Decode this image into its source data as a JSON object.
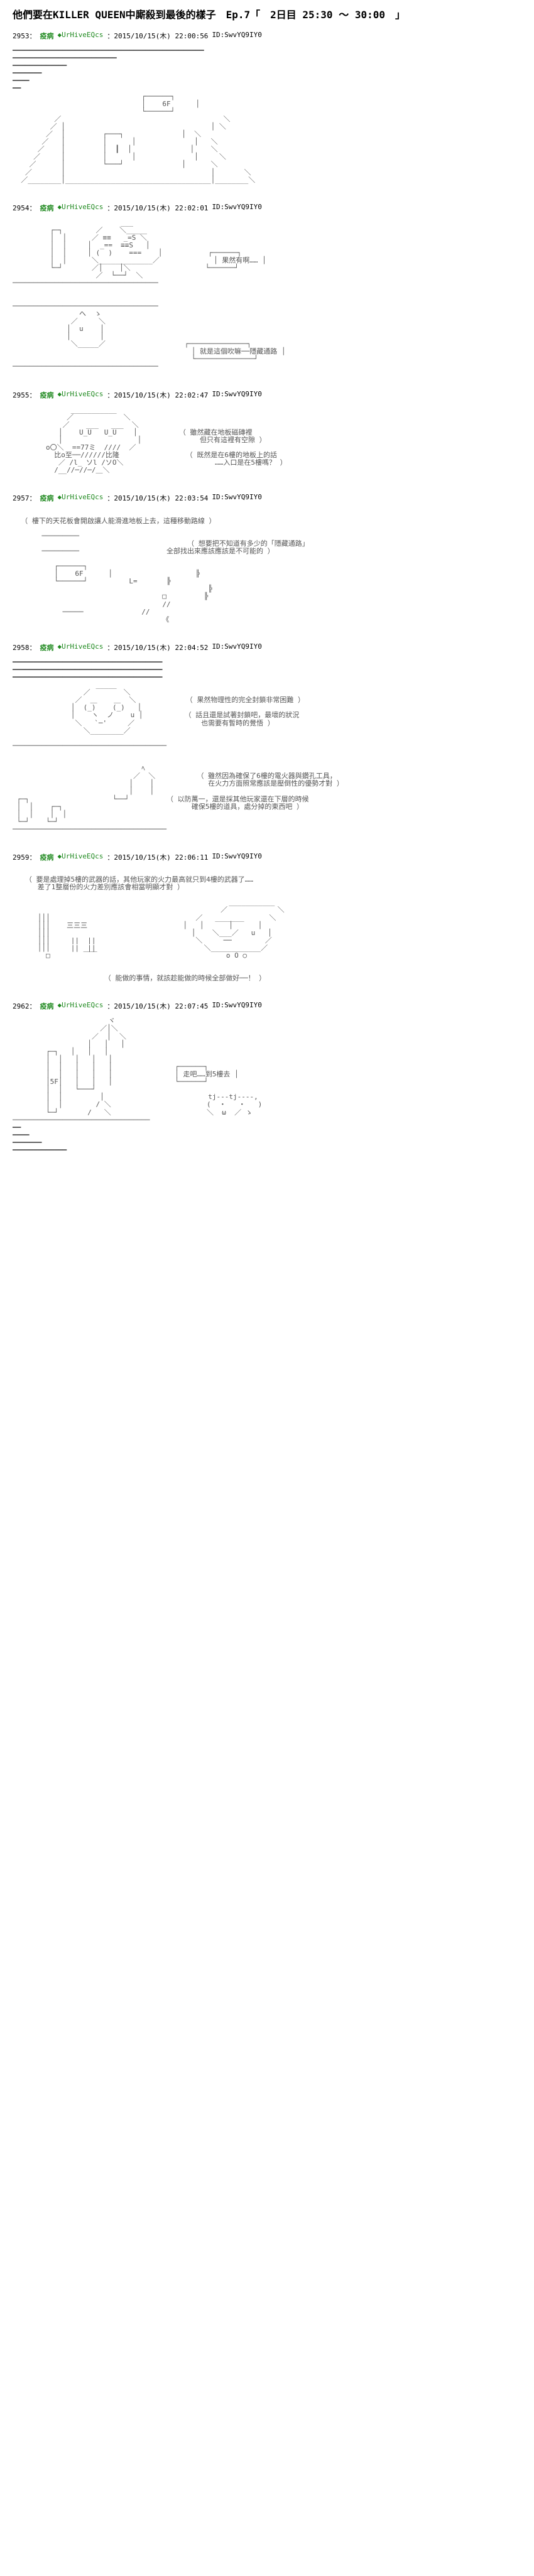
{
  "title": "他們要在KILLER QUEEN中廝殺到最後的樣子　Ep.7「　2日目 25:30 ～ 30:00　」",
  "name_label": "疫病",
  "tripcode": "◆UrHiveEQcs",
  "posts": [
    {
      "num": "2953",
      "date": "2015/10/15(木) 22:00:56",
      "id": "ID:SwvYQ9IY0",
      "aa": "━━━━━━━━━━━━━━━━━━━━━━━━━━━━━━━━━━━━━━━━━━━━━━\n━━━━━━━━━━━━━━━━━━━━━━━━━\n━━━━━━━━━━━━━\n━━━━━━━\n━━━━\n━━\n                               ┌──────┐\n                               │    6F      │\n                               └──────┘\n          ／                                       ＼\n         ／ │                                   │ ＼\n        ／  │         ┌───┐              │  ＼\n       ／   │         │      │              │   ＼\n      ／    │         │  ┃  │              │    ＼\n     ／     │         │      │              │     ＼\n    ／      │         └───┘              │      ＼\n   ／       │                                   │       ＼\n  ／________│___________________________________│________＼"
    },
    {
      "num": "2954",
      "date": "2015/10/15(木) 22:02:01",
      "id": "ID:SwvYQ9IY0",
      "aa": "                          ___\n         ┌─┐        ／    ＼_____\n         │  │      ／ ≡≡   _=S ＼\n         │  │     │  _==  ≡≡S   │\n         │  │     │ (  )    ===    │           ┌──────┐\n         │  │      ＼_____________／             │ 果然有啊…… │\n         └─┘       ／│    │＼                  └──────┘\n                    ／  └──┘  ＼\n───────────────────────────────────\n\n\n───────────────────────────────────\n                へ  ゝ\n              ／     ＼\n             │  u    │\n             │       │\n              ＼_____／                   ┌──────────────┐\n                                           │ 就是這個吹嘛──隱藏通路 │\n                                           └──────────────┘\n───────────────────────────────────"
    },
    {
      "num": "2955",
      "date": "2015/10/15(木) 22:02:47",
      "id": "ID:SwvYQ9IY0",
      "aa": "              ___________\n             ／            ＼\n            ／    ___   ___  ＼\n           │    U_U   U_U    │          （ 雖然藏在地板磁磚裡\n           │                  │              但只有這裡有空隙 ）\n        o〇＼  ==77ミ  ////  ／\n          比o至──//////比隆                （ 既然是在6樓的地板上的話\n           ／ /l_ ソl /ソO＼                      ……入口是在5樓嗎？ ）\n          /__//─//─/＿＼"
    },
    {
      "num": "2957",
      "date": "2015/10/15(木) 22:03:54",
      "id": "ID:SwvYQ9IY0",
      "aa": "\n  （ 樓下的天花板會開啟讓人能滑進地板上去，這種移動路線 ）\n\n       ─────────\n                                          （ 想要把不知道有多少的「隱藏通路」\n       ─────────                     全部找出來應該應該是不可能的 ）\n\n          ┌──────┐\n          │    6F      │                    ╠\n          └──────┘          L=       ╠\n                                               ╠\n                                    □         ╠\n                                    //\n            ─────              //\n                                    《"
    },
    {
      "num": "2958",
      "date": "2015/10/15(木) 22:04:52",
      "id": "ID:SwvYQ9IY0",
      "aa": "━━━━━━━━━━━━━━━━━━━━━━━━━━━━━━━━━━━━\n━━━━━━━━━━━━━━━━━━━━━━━━━━━━━━━━━━━━\n━━━━━━━━━━━━━━━━━━━━━━━━━━━━━━━━━━━━\n                    _____\n                 ／        ＼\n               ／  ＿    ＿  ＼            （ 果然物理性的完全封鎖非常困難 ）\n              │  (_)    (_)   │\n              │    ヽ  ノ    u │          （ 話且還是試著封鎖吧，最壞的狀況\n               ＼   `─'     ／                也需要有暫時的覺悟 ）\n                 ＼________／\n\n─────────────────────────────────────\n\n\n                               ﾍ\n                             ／  ＼          （ 雖然因為確保了6樓的電火器與鑽孔工具，\n                            │    │             在火力方面照常應該是壓倒性的優勢才對 ）\n                            │    │\n ┌─┐                    └──┘         （ 以防萬一，還是採其他玩家還在下層的時候\n │  │    ┌─┐                               確保5樓的道具，處分掉的東西吧 ）\n │  │    │  │\n └─┘    └─┘\n─────────────────────────────────────"
    },
    {
      "num": "2959",
      "date": "2015/10/15(木) 22:06:11",
      "id": "ID:SwvYQ9IY0",
      "aa": "\n   （ 要是處理掉5樓的武器的話，其他玩家的火力最高就只到4樓的武器了……\n      差了1整層份的火力差別應該會相當明顯才對 ）\n\n                                                    ___________\n                                                  ／            ＼\n      │││                                   ／   _______      ＼\n      │││    三三三                       │   │      │      │\n      │││                                  │    ＼___／   u   │\n      │││     ||  ||                        ＼     ──        ／\n      │││     ||  ||                          ＼____________／\n        □        ￣￣                               o O ○\n\n\n                      （ 能做的事情，就該趁能做的時候全部做好──！ ）"
    },
    {
      "num": "2962",
      "date": "2015/10/15(木) 22:07:45",
      "id": "ID:SwvYQ9IY0",
      "aa": "                       ヾ\n                     ／│＼\n                   ／  │  ＼\n                  │   │   │\n        ┌─┐   │   │   │\n        │  │   │   │   │\n        │  │   │   │   │               ┌──────┐\n        │  │   │   │   │               │ 走吧……到5樓去 │\n        │5F│   │   │   │               └──────┘\n        │  │   └───┘\n        │  │         │                         tj---tj----,\n        │  │        / ＼                       (  ・   ・   )\n        └─┘       /   ＼                       ＼  ω  ／ ゝ\n─────────────────────────────────\n━━\n━━━━\n━━━━━━━\n━━━━━━━━━━━━━"
    }
  ]
}
